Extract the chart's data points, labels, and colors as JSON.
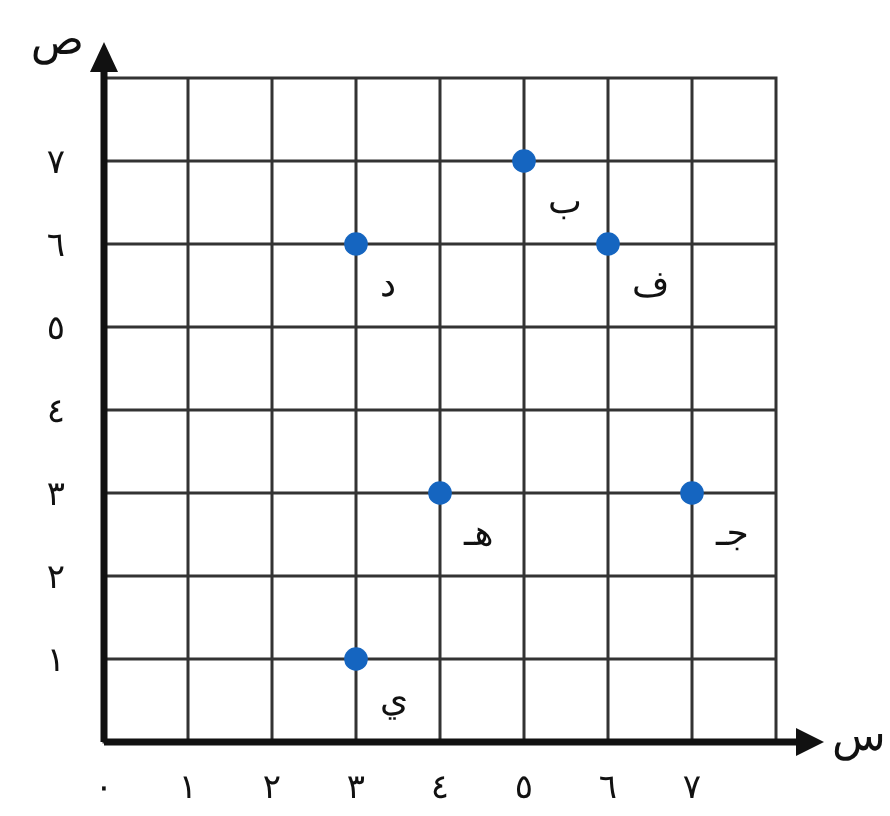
{
  "chart_data": {
    "type": "scatter",
    "xlabel": "س",
    "ylabel": "ص",
    "xlim": [
      0,
      8
    ],
    "ylim": [
      0,
      8
    ],
    "xticks": [
      {
        "value": 0,
        "label": "٠"
      },
      {
        "value": 1,
        "label": "١"
      },
      {
        "value": 2,
        "label": "٢"
      },
      {
        "value": 3,
        "label": "٣"
      },
      {
        "value": 4,
        "label": "٤"
      },
      {
        "value": 5,
        "label": "٥"
      },
      {
        "value": 6,
        "label": "٦"
      },
      {
        "value": 7,
        "label": "٧"
      }
    ],
    "yticks": [
      {
        "value": 1,
        "label": "١"
      },
      {
        "value": 2,
        "label": "٢"
      },
      {
        "value": 3,
        "label": "٣"
      },
      {
        "value": 4,
        "label": "٤"
      },
      {
        "value": 5,
        "label": "٥"
      },
      {
        "value": 6,
        "label": "٦"
      },
      {
        "value": 7,
        "label": "٧"
      }
    ],
    "grid": true,
    "marker": "circle",
    "series": [
      {
        "color": "#1565c0",
        "x": [
          5,
          3,
          6,
          4,
          7,
          3
        ],
        "values": [
          7,
          6,
          6,
          3,
          3,
          1
        ]
      }
    ],
    "annotations": [
      {
        "text": "ب",
        "x": 5,
        "y": 7
      },
      {
        "text": "د",
        "x": 3,
        "y": 6
      },
      {
        "text": "ف",
        "x": 6,
        "y": 6
      },
      {
        "text": "هـ",
        "x": 4,
        "y": 3
      },
      {
        "text": "جـ",
        "x": 7,
        "y": 3
      },
      {
        "text": "ي",
        "x": 3,
        "y": 1
      }
    ]
  }
}
